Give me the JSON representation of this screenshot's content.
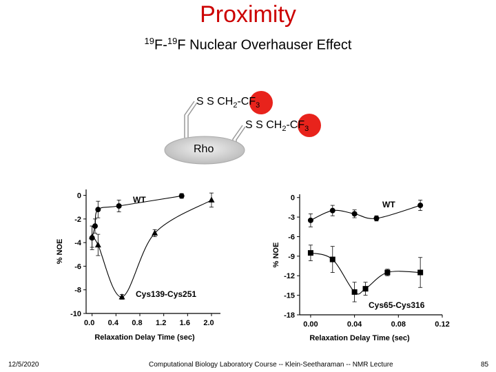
{
  "slide": {
    "title": "Proximity",
    "subtitle_sup1": "19",
    "subtitle_f1": "F-",
    "subtitle_sup2": "19",
    "subtitle_rest": "F Nuclear Overhauser Effect",
    "probe1": {
      "ss": "S  S  CH",
      "sub2": "2",
      "dash": "-",
      "cf": "CF",
      "sub3": "3"
    },
    "probe2": {
      "ss": "S  S  CH",
      "sub2": "2",
      "dash": "-",
      "cf": "CF",
      "sub3": "3"
    },
    "protein_label": "Rho",
    "footer_left": "12/5/2020",
    "footer_center": "Computational Biology Laboratory Course -- Klein-Seetharaman -- NMR Lecture",
    "footer_right": "85"
  },
  "colors": {
    "title": "#cc0000",
    "cf3": "#e8231c",
    "rho": "#d0d0d0"
  },
  "chart_data": [
    {
      "type": "line",
      "xlabel": "Relaxation Delay Time (sec)",
      "ylabel": "% NOE",
      "xlim": [
        -0.1,
        2.15
      ],
      "ylim": [
        -10,
        0.5
      ],
      "xticks": [
        0.0,
        0.4,
        0.8,
        1.2,
        1.6,
        2.0
      ],
      "xtick_labels": [
        "0.0",
        "0.4",
        "0.8",
        "1.2",
        "1.6",
        "2.0"
      ],
      "yticks": [
        0,
        -2,
        -4,
        -6,
        -8,
        -10
      ],
      "ytick_labels": [
        "0",
        "-2",
        "-4",
        "-6",
        "-8",
        "-10"
      ],
      "series": [
        {
          "name": "WT",
          "marker": "circle",
          "x": [
            0.0,
            0.05,
            0.1,
            0.45,
            1.5
          ],
          "y": [
            -3.6,
            -2.6,
            -1.2,
            -0.9,
            -0.05
          ],
          "err": [
            1.0,
            0.6,
            0.7,
            0.5,
            0.2
          ]
        },
        {
          "name": "Cys139-Cys251",
          "marker": "triangle",
          "x": [
            0.0,
            0.1,
            0.5,
            1.05,
            2.0
          ],
          "y": [
            -3.5,
            -4.2,
            -8.6,
            -3.2,
            -0.4
          ],
          "err": [
            0.9,
            0.9,
            0.2,
            0.3,
            0.6
          ]
        }
      ]
    },
    {
      "type": "line",
      "xlabel": "Relaxation Delay Time (sec)",
      "ylabel": "% NOE",
      "xlim": [
        -0.01,
        0.12
      ],
      "ylim": [
        -18,
        0.5
      ],
      "xticks": [
        0.0,
        0.04,
        0.08,
        0.12
      ],
      "xtick_labels": [
        "0.00",
        "0.04",
        "0.08",
        "0.12"
      ],
      "yticks": [
        0,
        -3,
        -6,
        -9,
        -12,
        -15,
        -18
      ],
      "ytick_labels": [
        "0",
        "-3",
        "-6",
        "-9",
        "-12",
        "-15",
        "-18"
      ],
      "series": [
        {
          "name": "WT",
          "marker": "circle",
          "x": [
            0.0,
            0.02,
            0.04,
            0.06,
            0.1
          ],
          "y": [
            -3.5,
            -2.0,
            -2.5,
            -3.2,
            -1.2
          ],
          "err": [
            1.0,
            0.8,
            0.6,
            0.4,
            0.8
          ]
        },
        {
          "name": "Cys65-Cys316",
          "marker": "square",
          "x": [
            0.0,
            0.02,
            0.04,
            0.05,
            0.07,
            0.1
          ],
          "y": [
            -8.5,
            -9.5,
            -14.5,
            -14.0,
            -11.5,
            -11.5
          ],
          "err": [
            1.2,
            2.0,
            1.5,
            1.0,
            0.5,
            2.3
          ]
        }
      ]
    }
  ]
}
